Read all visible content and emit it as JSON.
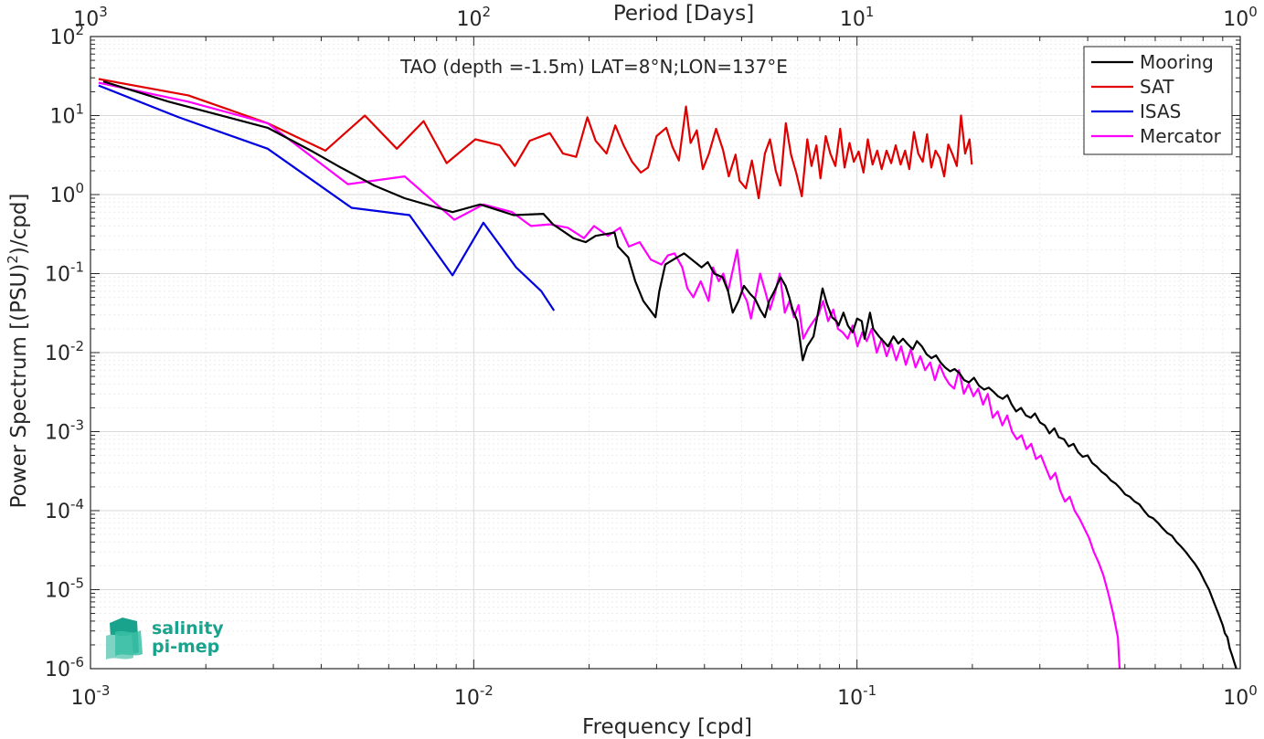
{
  "chart_data": {
    "type": "line",
    "title": "TAO (depth =-1.5m) LAT=8°N;LON=137°E",
    "xlabel": "Frequency [cpd]",
    "ylabel": "Power Spectrum [(PSU)²/cpd]",
    "top_xlabel": "Period [Days]",
    "xscale": "log",
    "yscale": "log",
    "xlim": [
      0.001,
      1
    ],
    "ylim": [
      1e-06,
      100
    ],
    "grid": true,
    "legend_position": "top-right",
    "x_ticks": [
      {
        "value": 0.001,
        "base": "10",
        "exp": "-3"
      },
      {
        "value": 0.01,
        "base": "10",
        "exp": "-2"
      },
      {
        "value": 0.1,
        "base": "10",
        "exp": "-1"
      },
      {
        "value": 1,
        "base": "10",
        "exp": "0"
      }
    ],
    "top_ticks": [
      {
        "value": 0.001,
        "base": "10",
        "exp": "3"
      },
      {
        "value": 0.01,
        "base": "10",
        "exp": "2"
      },
      {
        "value": 0.1,
        "base": "10",
        "exp": "1"
      },
      {
        "value": 1,
        "base": "10",
        "exp": "0"
      }
    ],
    "y_ticks": [
      {
        "value": 100,
        "base": "10",
        "exp": "2"
      },
      {
        "value": 10,
        "base": "10",
        "exp": "1"
      },
      {
        "value": 1,
        "base": "10",
        "exp": "0"
      },
      {
        "value": 0.1,
        "base": "10",
        "exp": "-1"
      },
      {
        "value": 0.01,
        "base": "10",
        "exp": "-2"
      },
      {
        "value": 0.001,
        "base": "10",
        "exp": "-3"
      },
      {
        "value": 0.0001,
        "base": "10",
        "exp": "-4"
      },
      {
        "value": 1e-05,
        "base": "10",
        "exp": "-5"
      },
      {
        "value": 1e-06,
        "base": "10",
        "exp": "-6"
      }
    ],
    "series": [
      {
        "name": "Mooring",
        "color": "#000000",
        "x": [
          0.00108,
          0.0016,
          0.0029,
          0.0038,
          0.0045,
          0.0055,
          0.0066,
          0.0088,
          0.0104,
          0.0127,
          0.0152,
          0.0161,
          0.0175,
          0.0182,
          0.0196,
          0.0208,
          0.0233,
          0.0238,
          0.0253,
          0.0264,
          0.0277,
          0.0298,
          0.0305,
          0.0316,
          0.0339,
          0.0354,
          0.0393,
          0.0408,
          0.0424,
          0.0446,
          0.0461,
          0.0474,
          0.0491,
          0.0507,
          0.0527,
          0.0542,
          0.0559,
          0.0575,
          0.059,
          0.0609,
          0.0632,
          0.0651,
          0.0666,
          0.0679,
          0.0699,
          0.0722,
          0.0741,
          0.077,
          0.0794,
          0.0813,
          0.0834,
          0.0861,
          0.0884,
          0.0895,
          0.0922,
          0.0947,
          0.0974,
          0.1001,
          0.1029,
          0.1047,
          0.1081,
          0.1103,
          0.1142,
          0.1171,
          0.1205,
          0.1245,
          0.1282,
          0.1318,
          0.1352,
          0.1398,
          0.1433,
          0.1477,
          0.152,
          0.1565,
          0.1608,
          0.1652,
          0.1698,
          0.175,
          0.1798,
          0.1851,
          0.1903,
          0.196,
          0.202,
          0.2082,
          0.2147,
          0.2206,
          0.2271,
          0.2334,
          0.2399,
          0.2468,
          0.2534,
          0.2602,
          0.268,
          0.2759,
          0.2841,
          0.2913,
          0.3004,
          0.3091,
          0.3179,
          0.3273,
          0.3361,
          0.347,
          0.3568,
          0.3674,
          0.3775,
          0.3883,
          0.3998,
          0.4111,
          0.4227,
          0.435,
          0.4477,
          0.4601,
          0.4732,
          0.4872,
          0.5012,
          0.5152,
          0.5305,
          0.5457,
          0.561,
          0.5768,
          0.5928,
          0.6101,
          0.6271,
          0.6454,
          0.6638,
          0.682,
          0.7011,
          0.7208,
          0.7418,
          0.7628,
          0.7847,
          0.8061,
          0.8293,
          0.8527,
          0.8765,
          0.901,
          0.9121,
          0.926,
          0.9387,
          0.9512,
          0.9652,
          0.9767
        ],
        "y": [
          27,
          15,
          7,
          3.5,
          2.2,
          1.3,
          0.9,
          0.6,
          0.75,
          0.55,
          0.57,
          0.42,
          0.32,
          0.28,
          0.25,
          0.3,
          0.33,
          0.22,
          0.16,
          0.08,
          0.045,
          0.028,
          0.06,
          0.13,
          0.16,
          0.18,
          0.12,
          0.14,
          0.1,
          0.09,
          0.06,
          0.032,
          0.045,
          0.07,
          0.055,
          0.048,
          0.035,
          0.028,
          0.045,
          0.06,
          0.09,
          0.07,
          0.05,
          0.035,
          0.025,
          0.008,
          0.012,
          0.016,
          0.035,
          0.065,
          0.042,
          0.028,
          0.025,
          0.022,
          0.032,
          0.022,
          0.018,
          0.027,
          0.025,
          0.015,
          0.032,
          0.02,
          0.016,
          0.014,
          0.012,
          0.016,
          0.013,
          0.015,
          0.013,
          0.011,
          0.014,
          0.012,
          0.0095,
          0.0085,
          0.0092,
          0.0075,
          0.0065,
          0.0058,
          0.0062,
          0.0055,
          0.0045,
          0.0042,
          0.0048,
          0.0038,
          0.0034,
          0.0036,
          0.0032,
          0.0028,
          0.0026,
          0.0029,
          0.0022,
          0.0018,
          0.002,
          0.0016,
          0.0015,
          0.0017,
          0.0013,
          0.0012,
          0.00095,
          0.0011,
          0.00085,
          0.0008,
          0.00065,
          0.0007,
          0.00055,
          0.00048,
          0.0005,
          0.0004,
          0.00036,
          0.00031,
          0.00028,
          0.00024,
          0.00022,
          0.00019,
          0.00016,
          0.00015,
          0.00013,
          0.00012,
          0.0001,
          8.5e-05,
          8e-05,
          7e-05,
          6e-05,
          5.2e-05,
          4.8e-05,
          4e-05,
          3.5e-05,
          3e-05,
          2.5e-05,
          2.1e-05,
          1.7e-05,
          1.3e-05,
          1e-05,
          7e-06,
          5e-06,
          3.5e-06,
          2.8e-06,
          2.5e-06,
          1.8e-06,
          1.5e-06,
          1.2e-06,
          1e-06
        ]
      },
      {
        "name": "SAT",
        "color": "#e00000",
        "x": [
          0.00105,
          0.0018,
          0.0029,
          0.0041,
          0.0052,
          0.0063,
          0.0074,
          0.0085,
          0.0101,
          0.0117,
          0.0128,
          0.014,
          0.0158,
          0.0171,
          0.0185,
          0.0198,
          0.0208,
          0.0222,
          0.0234,
          0.0246,
          0.0259,
          0.0273,
          0.0285,
          0.03,
          0.0318,
          0.033,
          0.0343,
          0.0358,
          0.0368,
          0.0382,
          0.0396,
          0.0411,
          0.0429,
          0.0447,
          0.0463,
          0.0482,
          0.0494,
          0.0513,
          0.0532,
          0.0554,
          0.0575,
          0.0593,
          0.0614,
          0.0631,
          0.0652,
          0.0673,
          0.0694,
          0.0718,
          0.0742,
          0.0761,
          0.0784,
          0.0803,
          0.0829,
          0.0852,
          0.0878,
          0.0904,
          0.0928,
          0.0956,
          0.0981,
          0.101,
          0.104,
          0.1067,
          0.1098,
          0.1129,
          0.116,
          0.1194,
          0.1228,
          0.1262,
          0.13,
          0.1335,
          0.1369,
          0.1408,
          0.1445,
          0.1484,
          0.1523,
          0.1563,
          0.1603,
          0.1645,
          0.1689,
          0.1731,
          0.1776,
          0.1822,
          0.1868,
          0.1915,
          0.1966,
          0.1993
        ],
        "y": [
          29,
          18,
          8,
          3.6,
          10,
          3.8,
          8.5,
          2.5,
          5,
          4.2,
          2.3,
          4.8,
          6,
          3.3,
          3,
          9.5,
          4.8,
          3.3,
          7.5,
          4.2,
          2.6,
          1.9,
          2.2,
          5.5,
          7,
          4,
          2.7,
          13,
          4.5,
          6.5,
          2.1,
          3.3,
          6.8,
          3.7,
          1.7,
          3.2,
          1.5,
          1.2,
          2.7,
          0.9,
          3.3,
          5,
          2,
          1.3,
          8,
          3.2,
          1.9,
          0.95,
          5,
          2.3,
          4.2,
          1.6,
          5.5,
          3.3,
          2.3,
          6.8,
          2.2,
          4.5,
          2.6,
          3.5,
          1.9,
          5,
          2.4,
          3.6,
          2.1,
          3.6,
          2.5,
          4.2,
          2.4,
          3.6,
          2.1,
          6.2,
          3.3,
          2.6,
          5.8,
          2.2,
          3.6,
          2.9,
          1.7,
          4.3,
          3.2,
          2.3,
          10,
          3.3,
          5,
          2.4
        ]
      },
      {
        "name": "ISAS",
        "color": "#0000e0",
        "x": [
          0.00105,
          0.0017,
          0.0029,
          0.0048,
          0.0068,
          0.0088,
          0.0106,
          0.0129,
          0.015,
          0.0162
        ],
        "y": [
          24,
          9.5,
          3.8,
          0.68,
          0.55,
          0.095,
          0.44,
          0.12,
          0.06,
          0.034
        ]
      },
      {
        "name": "Mercator",
        "color": "#ff00ff",
        "x": [
          0.00105,
          0.0018,
          0.0029,
          0.0047,
          0.0066,
          0.0089,
          0.0106,
          0.0126,
          0.0141,
          0.0158,
          0.0176,
          0.0194,
          0.0206,
          0.0224,
          0.0241,
          0.0254,
          0.0271,
          0.029,
          0.0309,
          0.0321,
          0.0334,
          0.035,
          0.0361,
          0.0374,
          0.0391,
          0.041,
          0.0421,
          0.0436,
          0.0448,
          0.0461,
          0.0474,
          0.0487,
          0.0501,
          0.0516,
          0.0529,
          0.0543,
          0.0559,
          0.0576,
          0.0593,
          0.061,
          0.0629,
          0.0648,
          0.0667,
          0.0685,
          0.0704,
          0.0724,
          0.0747,
          0.077,
          0.0793,
          0.0816,
          0.0841,
          0.0867,
          0.0892,
          0.0918,
          0.0946,
          0.0974,
          0.1003,
          0.1032,
          0.1061,
          0.1092,
          0.1126,
          0.116,
          0.1195,
          0.1229,
          0.1266,
          0.1303,
          0.1341,
          0.1381,
          0.1421,
          0.1463,
          0.1506,
          0.1552,
          0.1597,
          0.1643,
          0.1692,
          0.1741,
          0.1793,
          0.1845,
          0.19,
          0.1955,
          0.2013,
          0.2072,
          0.2133,
          0.2195,
          0.2261,
          0.2327,
          0.2395,
          0.2465,
          0.2538,
          0.2613,
          0.2689,
          0.2768,
          0.2849,
          0.2933,
          0.3019,
          0.3108,
          0.3199,
          0.3293,
          0.3389,
          0.3489,
          0.3591,
          0.3697,
          0.3805,
          0.3917,
          0.4032,
          0.415,
          0.4272,
          0.4397,
          0.4526,
          0.4659,
          0.4795,
          0.4845
        ],
        "y": [
          26,
          15,
          8,
          1.35,
          1.7,
          0.48,
          0.75,
          0.6,
          0.4,
          0.42,
          0.38,
          0.28,
          0.4,
          0.3,
          0.38,
          0.22,
          0.25,
          0.15,
          0.13,
          0.17,
          0.18,
          0.12,
          0.065,
          0.05,
          0.08,
          0.045,
          0.12,
          0.08,
          0.1,
          0.06,
          0.11,
          0.2,
          0.06,
          0.045,
          0.027,
          0.05,
          0.1,
          0.06,
          0.035,
          0.055,
          0.1,
          0.032,
          0.045,
          0.028,
          0.04,
          0.015,
          0.02,
          0.025,
          0.03,
          0.045,
          0.025,
          0.035,
          0.02,
          0.018,
          0.015,
          0.022,
          0.012,
          0.018,
          0.014,
          0.02,
          0.01,
          0.015,
          0.009,
          0.013,
          0.008,
          0.012,
          0.007,
          0.011,
          0.0065,
          0.009,
          0.006,
          0.0075,
          0.0045,
          0.007,
          0.005,
          0.004,
          0.0035,
          0.006,
          0.003,
          0.004,
          0.0028,
          0.0035,
          0.0022,
          0.003,
          0.0015,
          0.0018,
          0.0012,
          0.0016,
          0.001,
          0.0008,
          0.0009,
          0.0006,
          0.0007,
          0.00045,
          0.0005,
          0.00035,
          0.00025,
          0.0003,
          0.00018,
          0.00013,
          0.00015,
          0.0001,
          8e-05,
          6e-05,
          4.5e-05,
          3e-05,
          2.2e-05,
          1.5e-05,
          9e-06,
          5e-06,
          2.5e-06,
          1e-06
        ]
      }
    ]
  },
  "logo": {
    "line1": "salinity",
    "line2": "pi-mep"
  }
}
